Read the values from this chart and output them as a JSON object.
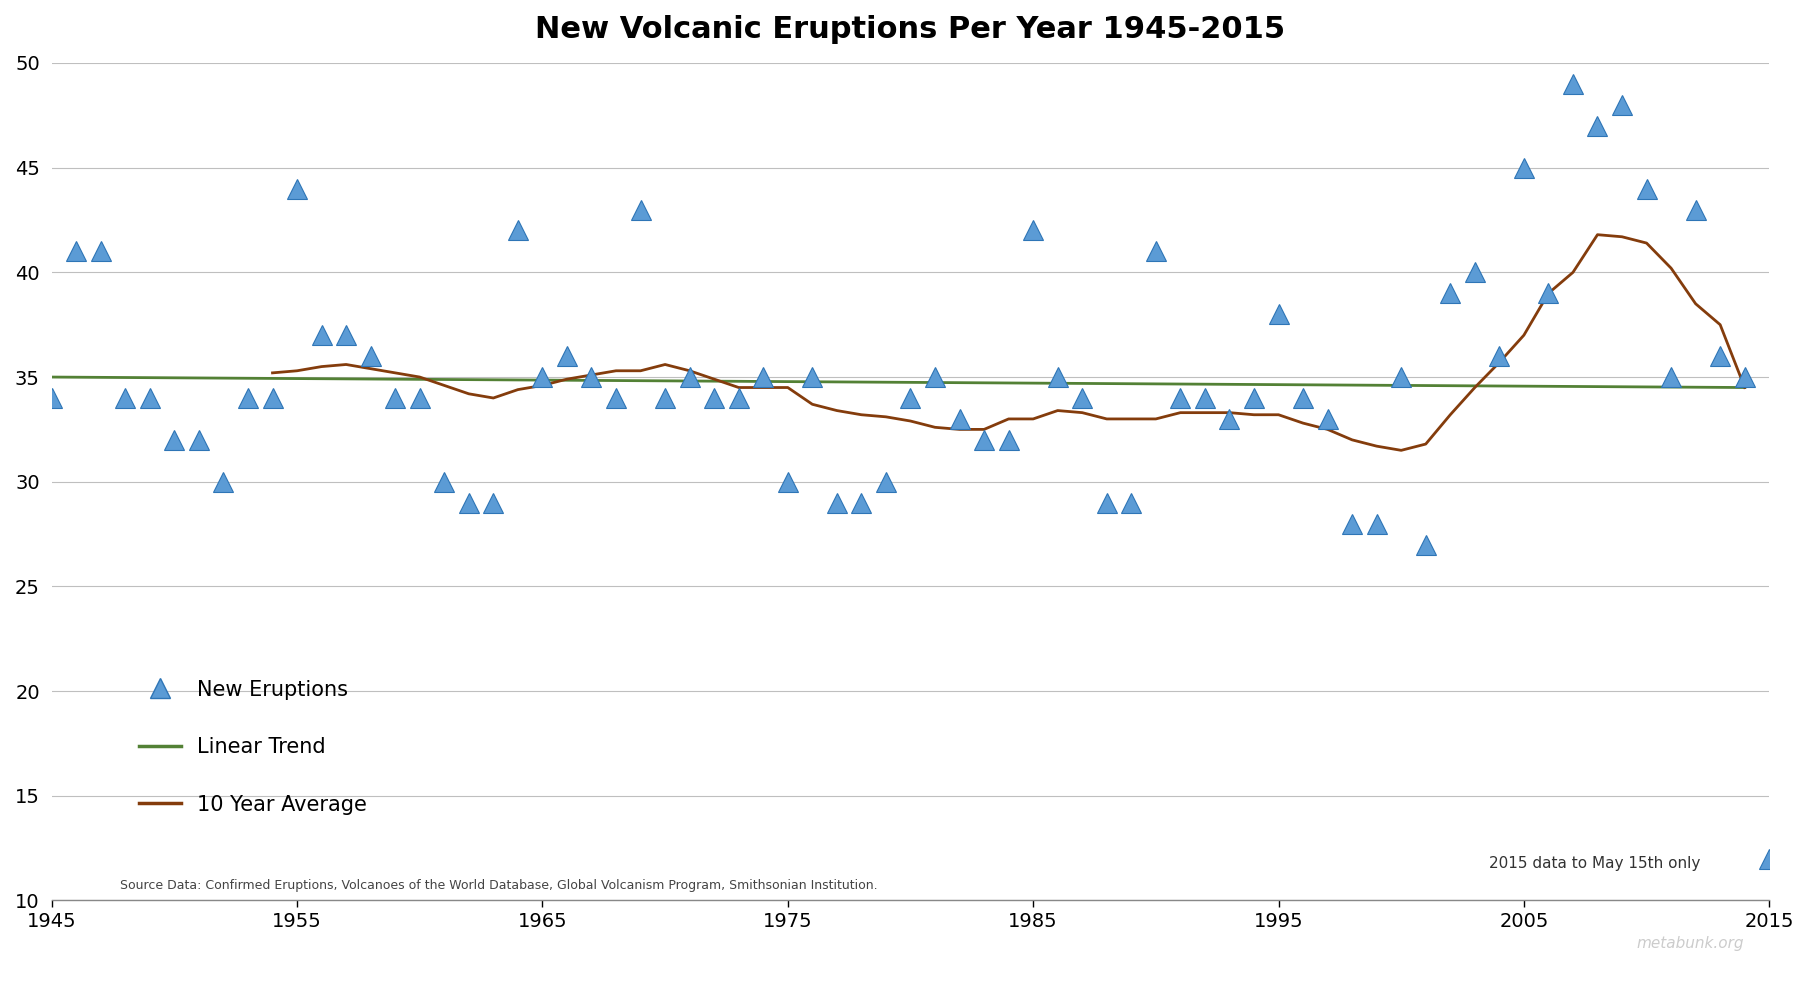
{
  "title": "New Volcanic Eruptions Per Year 1945-2015",
  "years": [
    1945,
    1946,
    1947,
    1948,
    1949,
    1950,
    1951,
    1952,
    1953,
    1954,
    1955,
    1956,
    1957,
    1958,
    1959,
    1960,
    1961,
    1962,
    1963,
    1964,
    1965,
    1966,
    1967,
    1968,
    1969,
    1970,
    1971,
    1972,
    1973,
    1974,
    1975,
    1976,
    1977,
    1978,
    1979,
    1980,
    1981,
    1982,
    1983,
    1984,
    1985,
    1986,
    1987,
    1988,
    1989,
    1990,
    1991,
    1992,
    1993,
    1994,
    1995,
    1996,
    1997,
    1998,
    1999,
    2000,
    2001,
    2002,
    2003,
    2004,
    2005,
    2006,
    2007,
    2008,
    2009,
    2010,
    2011,
    2012,
    2013,
    2014,
    2015
  ],
  "eruptions": [
    34,
    41,
    41,
    34,
    34,
    32,
    32,
    30,
    34,
    34,
    44,
    37,
    37,
    36,
    34,
    34,
    30,
    29,
    29,
    42,
    35,
    36,
    35,
    34,
    43,
    34,
    35,
    34,
    34,
    35,
    30,
    35,
    29,
    29,
    30,
    34,
    35,
    33,
    32,
    32,
    42,
    35,
    34,
    29,
    29,
    41,
    34,
    34,
    33,
    34,
    38,
    34,
    33,
    28,
    28,
    35,
    27,
    39,
    40,
    36,
    45,
    39,
    49,
    47,
    48,
    44,
    35,
    43,
    36,
    35,
    12
  ],
  "avg10_years": [
    1954,
    1955,
    1956,
    1957,
    1958,
    1959,
    1960,
    1961,
    1962,
    1963,
    1964,
    1965,
    1966,
    1967,
    1968,
    1969,
    1970,
    1971,
    1972,
    1973,
    1974,
    1975,
    1976,
    1977,
    1978,
    1979,
    1980,
    1981,
    1982,
    1983,
    1984,
    1985,
    1986,
    1987,
    1988,
    1989,
    1990,
    1991,
    1992,
    1993,
    1994,
    1995,
    1996,
    1997,
    1998,
    1999,
    2000,
    2001,
    2002,
    2003,
    2004,
    2005,
    2006,
    2007,
    2008,
    2009,
    2010,
    2011,
    2012,
    2013,
    2014
  ],
  "avg10_values": [
    35.2,
    35.3,
    35.5,
    35.6,
    35.4,
    35.2,
    35.0,
    34.6,
    34.2,
    34.0,
    34.4,
    34.6,
    34.9,
    35.1,
    35.3,
    35.3,
    35.6,
    35.3,
    34.9,
    34.5,
    34.5,
    34.5,
    33.7,
    33.4,
    33.2,
    33.1,
    32.9,
    32.6,
    32.5,
    32.5,
    33.0,
    33.0,
    33.4,
    33.3,
    33.0,
    33.0,
    33.0,
    33.3,
    33.3,
    33.3,
    33.2,
    33.2,
    32.8,
    32.5,
    32.0,
    31.7,
    31.5,
    31.8,
    33.2,
    34.5,
    35.7,
    37.0,
    39.0,
    40.0,
    41.8,
    41.7,
    41.4,
    40.2,
    38.5,
    37.5,
    34.5
  ],
  "trend_x": [
    1945,
    2014
  ],
  "trend_y": [
    35.0,
    34.5
  ],
  "xlim": [
    1945,
    2015
  ],
  "ylim": [
    10,
    50
  ],
  "yticks": [
    10,
    15,
    20,
    25,
    30,
    35,
    40,
    45,
    50
  ],
  "xticks": [
    1945,
    1955,
    1965,
    1975,
    1985,
    1995,
    2005,
    2015
  ],
  "marker_color": "#5B9BD5",
  "marker_edge_color": "#2E75B6",
  "trend_color": "#538135",
  "avg_color": "#843C0C",
  "grid_color": "#BFBFBF",
  "background_color": "#FFFFFF",
  "plot_bg_color": "#FFFFFF",
  "source_text": "Source Data: Confirmed Eruptions, Volcanoes of the World Database, Global Volcanism Program, Smithsonian Institution.",
  "note_text": "2015 data to May 15th only",
  "watermark": "metabunk.org",
  "legend_eruptions": "New Eruptions",
  "legend_trend": "Linear Trend",
  "legend_avg": "10 Year Average"
}
